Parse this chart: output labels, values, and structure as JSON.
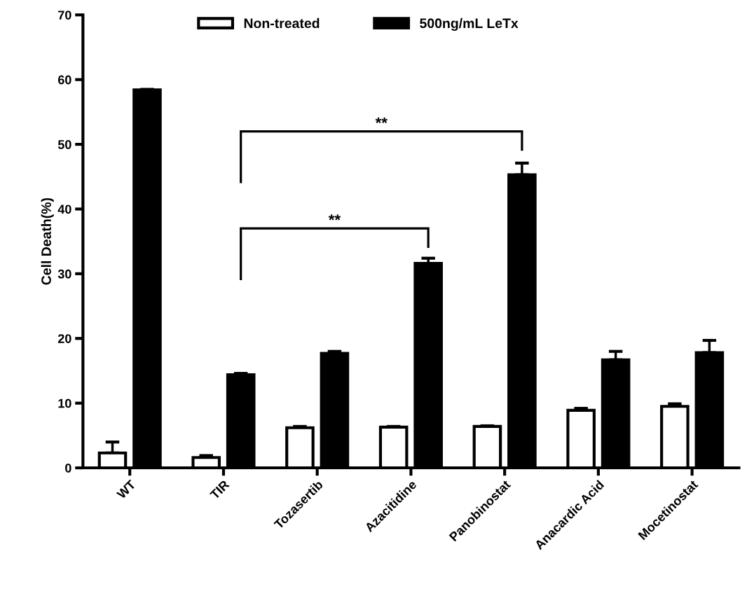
{
  "chart_data": {
    "type": "bar",
    "ylabel": "Cell Death(%)",
    "categories": [
      "WT",
      "TIR",
      "Tozasertib",
      "Azacitidine",
      "Panobinostat",
      "Anacardic Acid",
      "Mocetinostat"
    ],
    "series": [
      {
        "name": "Non-treated",
        "color": "#ffffff",
        "values": [
          2.3,
          1.6,
          6.2,
          6.3,
          6.4,
          8.9,
          9.5
        ],
        "errors": [
          1.7,
          0.3,
          0.2,
          0.1,
          0.1,
          0.3,
          0.4
        ]
      },
      {
        "name": "500ng/mL LeTx",
        "color": "#000000",
        "values": [
          58.4,
          14.4,
          17.7,
          31.6,
          45.3,
          16.7,
          17.8
        ],
        "errors": [
          0.1,
          0.2,
          0.3,
          0.8,
          1.8,
          1.3,
          1.9
        ]
      }
    ],
    "ylim": [
      0,
      70
    ],
    "yticks": [
      0,
      10,
      20,
      30,
      40,
      50,
      60,
      70
    ],
    "annotations": [
      "**",
      "**"
    ],
    "grid": false,
    "legend": "top"
  }
}
